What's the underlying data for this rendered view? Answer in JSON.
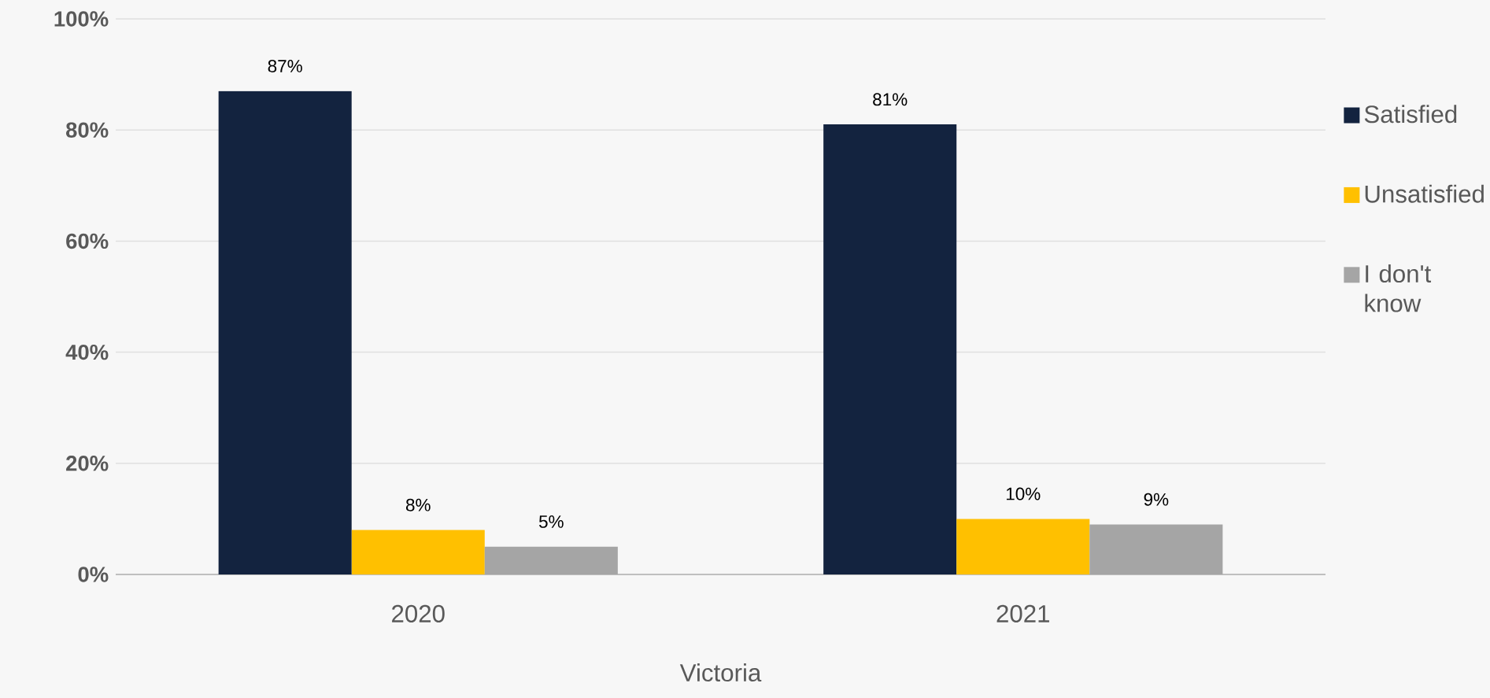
{
  "chart_data": {
    "type": "bar",
    "xlabel": "Victoria",
    "categories": [
      "2020",
      "2021"
    ],
    "series": [
      {
        "name": "Satisfied",
        "color": "#13233f",
        "values": [
          87,
          81
        ],
        "value_labels": [
          "87%",
          "81%"
        ]
      },
      {
        "name": "Unsatisfied",
        "color": "#ffc000",
        "values": [
          8,
          10
        ],
        "value_labels": [
          "8%",
          "10%"
        ]
      },
      {
        "name": "I don't know",
        "color": "#a5a5a5",
        "values": [
          5,
          9
        ],
        "value_labels": [
          "5%",
          "9%"
        ]
      }
    ],
    "ylim": [
      0,
      100
    ],
    "yticks": [
      {
        "value": 0,
        "label": "0%"
      },
      {
        "value": 20,
        "label": "20%"
      },
      {
        "value": 40,
        "label": "40%"
      },
      {
        "value": 60,
        "label": "60%"
      },
      {
        "value": 80,
        "label": "80%"
      },
      {
        "value": 100,
        "label": "100%"
      }
    ],
    "grid": "y",
    "legend": "right"
  }
}
